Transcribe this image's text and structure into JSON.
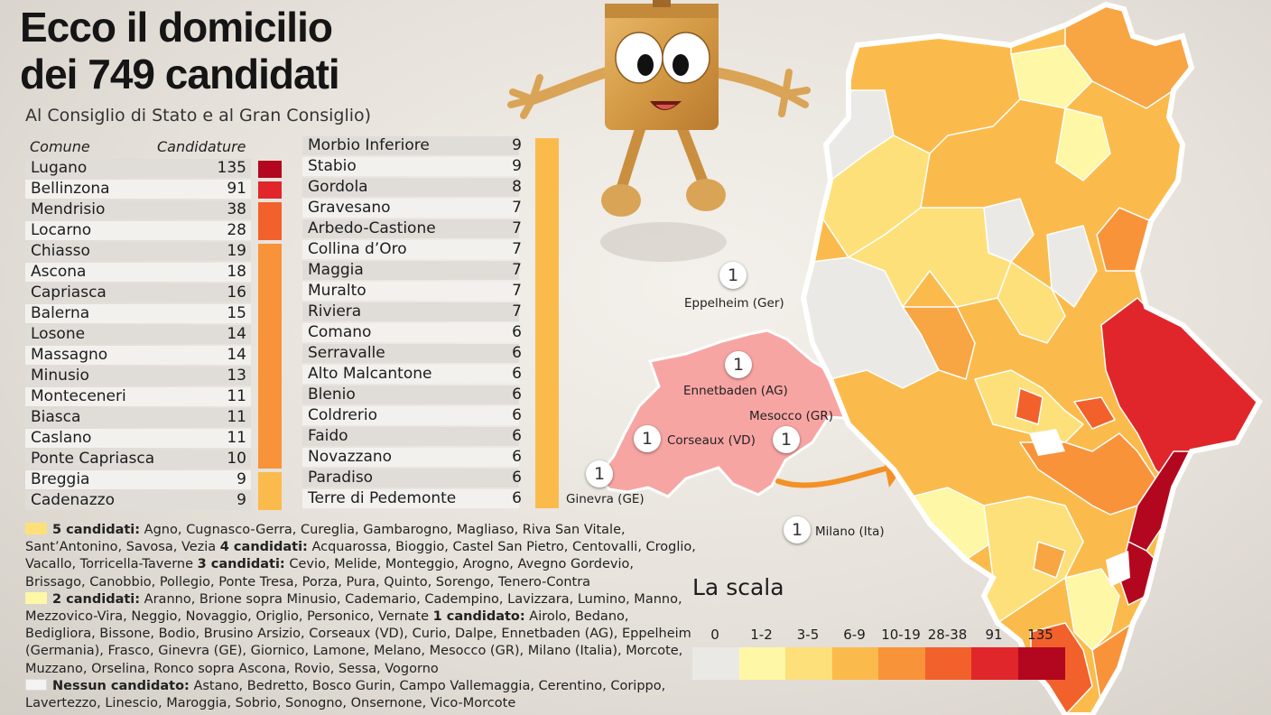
{
  "title_line1": "Ecco il domicilio",
  "title_line2": "dei 749 candidati",
  "subtitle": "Al Consiglio di Stato e al Gran Consiglio)",
  "table": {
    "col_comune": "Comune",
    "col_candidature": "Candidature",
    "left": [
      {
        "name": "Lugano",
        "value": "135"
      },
      {
        "name": "Bellinzona",
        "value": "91"
      },
      {
        "name": "Mendrisio",
        "value": "38"
      },
      {
        "name": "Locarno",
        "value": "28"
      },
      {
        "name": "Chiasso",
        "value": "19"
      },
      {
        "name": "Ascona",
        "value": "18"
      },
      {
        "name": "Capriasca",
        "value": "16"
      },
      {
        "name": "Balerna",
        "value": "15"
      },
      {
        "name": "Losone",
        "value": "14"
      },
      {
        "name": "Massagno",
        "value": "14"
      },
      {
        "name": "Minusio",
        "value": "13"
      },
      {
        "name": "Monteceneri",
        "value": "11"
      },
      {
        "name": "Biasca",
        "value": "11"
      },
      {
        "name": "Caslano",
        "value": "11"
      },
      {
        "name": "Ponte Capriasca",
        "value": "10"
      },
      {
        "name": "Breggia",
        "value": "9"
      },
      {
        "name": "Cadenazzo",
        "value": "9"
      }
    ],
    "right": [
      {
        "name": "Morbio Inferiore",
        "value": "9"
      },
      {
        "name": "Stabio",
        "value": "9"
      },
      {
        "name": "Gordola",
        "value": "8"
      },
      {
        "name": "Gravesano",
        "value": "7"
      },
      {
        "name": "Arbedo-Castione",
        "value": "7"
      },
      {
        "name": "Collina d’Oro",
        "value": "7"
      },
      {
        "name": "Maggia",
        "value": "7"
      },
      {
        "name": "Muralto",
        "value": "7"
      },
      {
        "name": "Riviera",
        "value": "7"
      },
      {
        "name": "Comano",
        "value": "6"
      },
      {
        "name": "Serravalle",
        "value": "6"
      },
      {
        "name": "Alto Malcantone",
        "value": "6"
      },
      {
        "name": "Blenio",
        "value": "6"
      },
      {
        "name": "Coldrerio",
        "value": "6"
      },
      {
        "name": "Faido",
        "value": "6"
      },
      {
        "name": "Novazzano",
        "value": "6"
      },
      {
        "name": "Paradiso",
        "value": "6"
      },
      {
        "name": "Terre di Pedemonte",
        "value": "6"
      }
    ]
  },
  "legend_text": {
    "l1_bold": "5 candidati:",
    "l1": " Agno, Cugnasco-Gerra, Cureglia, Gambarogno, Magliaso, Riva San Vitale,",
    "l2a": "Sant’Antonino, Savosa, Vezia ",
    "l2_bold": "4 candidati:",
    "l2b": " Acquarossa, Bioggio, Castel San Pietro, Centovalli, Croglio,",
    "l3a": "Vacallo, Torricella-Taverne ",
    "l3_bold": "3 candidati:",
    "l3b": " Cevio, Melide, Monteggio, Arogno, Avegno Gordevio,",
    "l4": "Brissago, Canobbio, Pollegio, Ponte Tresa, Porza, Pura, Quinto, Sorengo, Tenero-Contra",
    "l5_bold": "2 candidati:",
    "l5": " Aranno, Brione sopra Minusio, Cademario, Cadempino, Lavizzara, Lumino, Manno,",
    "l6a": "Mezzovico-Vira, Neggio, Novaggio, Origlio, Personico, Vernate ",
    "l6_bold": "1 candidato:",
    "l6b": " Airolo, Bedano,",
    "l7": "Bedigliora, Bissone, Bodio, Brusino Arsizio, Corseaux (VD), Curio, Dalpe, Ennetbaden (AG), Eppelheim",
    "l8": "(Germania), Frasco, Ginevra (GE), Giornico, Lamone, Melano, Mesocco (GR), Milano (Italia), Morcote,",
    "l9": "Muzzano, Orselina, Ronco sopra Ascona, Rovio, Sessa, Vogorno",
    "l10_bold": "Nessun candidato:",
    "l10": " Astano, Bedretto, Bosco Gurin, Campo Vallemaggia, Cerentino, Corippo,",
    "l11": "Lavertezzo, Linescio, Maroggia, Sobrio, Sonogno, Onsernone, Vico-Morcote"
  },
  "scale": {
    "title": "La scala",
    "labels": [
      "0",
      "1-2",
      "3-5",
      "6-9",
      "10-19",
      "28-38",
      "91",
      "135"
    ],
    "colors": [
      "#ebe9e6",
      "#fdf7a6",
      "#fde07a",
      "#fbbb4c",
      "#f89339",
      "#f2612b",
      "#e0262a",
      "#b2071e"
    ]
  },
  "external_pins": [
    {
      "value": "1",
      "label": "Eppelheim (Ger)"
    },
    {
      "value": "1",
      "label": "Ennetbaden (AG)"
    },
    {
      "value": "1",
      "label": "Mesocco (GR)"
    },
    {
      "value": "1",
      "label": "Corseaux (VD)"
    },
    {
      "value": "1",
      "label": "Ginevra (GE)"
    },
    {
      "value": "1",
      "label": "Milano (Ita)"
    }
  ]
}
